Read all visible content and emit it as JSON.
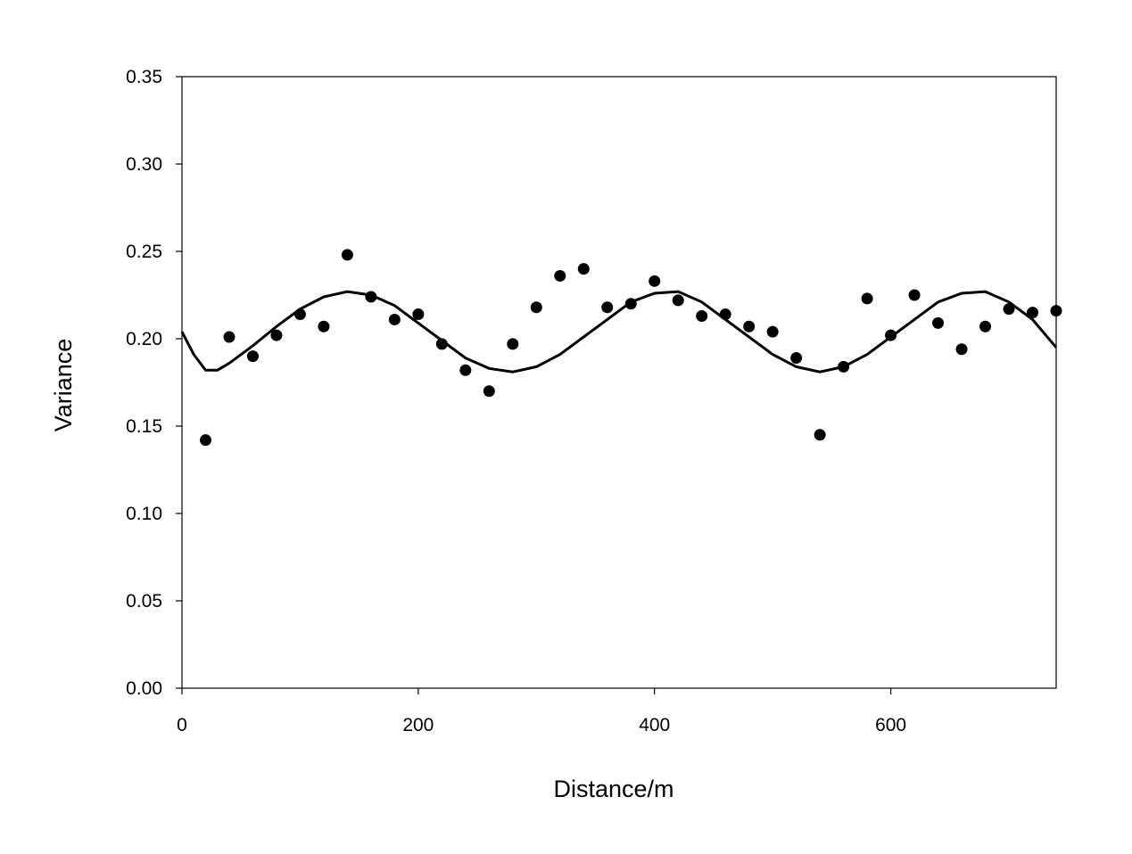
{
  "chart_data": {
    "type": "scatter",
    "title": "",
    "xlabel": "Distance/m",
    "ylabel": "Variance",
    "xlim": [
      0,
      740
    ],
    "ylim": [
      0,
      0.35
    ],
    "x_ticks": [
      "0",
      "200",
      "400",
      "600"
    ],
    "x_tick_values": [
      0,
      200,
      400,
      600
    ],
    "y_ticks": [
      "0.00",
      "0.05",
      "0.10",
      "0.15",
      "0.20",
      "0.25",
      "0.30",
      "0.35"
    ],
    "y_tick_values": [
      0,
      0.05,
      0.1,
      0.15,
      0.2,
      0.25,
      0.3,
      0.35
    ],
    "grid": false,
    "legend": "none",
    "series": [
      {
        "kind": "points",
        "x": [
          20,
          40,
          60,
          80,
          100,
          120,
          140,
          160,
          180,
          200,
          220,
          240,
          260,
          280,
          300,
          320,
          340,
          360,
          380,
          400,
          420,
          440,
          460,
          480,
          500,
          520,
          540,
          560,
          580,
          600,
          620,
          640,
          660,
          680,
          700,
          720,
          740
        ],
        "y": [
          0.142,
          0.201,
          0.19,
          0.202,
          0.214,
          0.207,
          0.248,
          0.224,
          0.211,
          0.214,
          0.197,
          0.182,
          0.17,
          0.197,
          0.218,
          0.236,
          0.24,
          0.218,
          0.22,
          0.233,
          0.222,
          0.213,
          0.214,
          0.207,
          0.204,
          0.189,
          0.145,
          0.184,
          0.223,
          0.202,
          0.225,
          0.209,
          0.194,
          0.207,
          0.217,
          0.215,
          0.216
        ]
      },
      {
        "kind": "fitted-curve",
        "x": [
          0,
          10,
          20,
          30,
          40,
          60,
          80,
          100,
          120,
          140,
          160,
          180,
          200,
          220,
          240,
          260,
          280,
          300,
          320,
          340,
          360,
          380,
          400,
          420,
          440,
          460,
          480,
          500,
          520,
          540,
          560,
          580,
          600,
          620,
          640,
          660,
          680,
          700,
          720,
          740
        ],
        "y": [
          0.204,
          0.191,
          0.182,
          0.182,
          0.186,
          0.196,
          0.207,
          0.217,
          0.224,
          0.227,
          0.225,
          0.219,
          0.209,
          0.199,
          0.189,
          0.183,
          0.181,
          0.184,
          0.191,
          0.201,
          0.211,
          0.221,
          0.226,
          0.227,
          0.221,
          0.211,
          0.201,
          0.191,
          0.184,
          0.181,
          0.184,
          0.191,
          0.201,
          0.211,
          0.221,
          0.226,
          0.227,
          0.221,
          0.211,
          0.195
        ]
      }
    ],
    "colors": {
      "marker": "#000000",
      "line": "#000000",
      "axis": "#000000"
    }
  }
}
